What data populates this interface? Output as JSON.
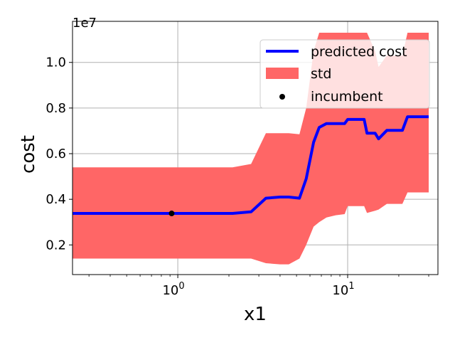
{
  "chart_data": {
    "type": "line",
    "title": "",
    "xlabel": "x1",
    "ylabel": "cost",
    "x_scale": "log",
    "y_offset_label": "1e7",
    "xlim": [
      0.24,
      34
    ],
    "ylim": [
      0.07,
      1.18
    ],
    "x_ticks": [
      {
        "value": 1,
        "label": "10",
        "exp": "0"
      },
      {
        "value": 10,
        "label": "10",
        "exp": "1"
      }
    ],
    "y_ticks": [
      {
        "value": 0.2,
        "label": "0.2"
      },
      {
        "value": 0.4,
        "label": "0.4"
      },
      {
        "value": 0.6,
        "label": "0.6"
      },
      {
        "value": 0.8,
        "label": "0.8"
      },
      {
        "value": 1.0,
        "label": "1.0"
      }
    ],
    "grid": true,
    "legend_position": "top-right",
    "colors": {
      "line": "#0000ff",
      "band": "#ff6666",
      "point": "#000000",
      "grid": "#b0b0b0"
    },
    "series": [
      {
        "name": "predicted cost",
        "x": [
          0.24,
          0.5,
          1.0,
          1.5,
          2.1,
          2.7,
          3.3,
          4.0,
          4.5,
          5.2,
          5.7,
          6.3,
          6.8,
          7.5,
          8.5,
          9.6,
          10.0,
          11.0,
          12.5,
          13.0,
          14.5,
          15.2,
          17.0,
          21.0,
          22.5,
          25.0,
          30.0
        ],
        "y": [
          0.338,
          0.338,
          0.338,
          0.338,
          0.338,
          0.345,
          0.405,
          0.41,
          0.41,
          0.405,
          0.49,
          0.65,
          0.715,
          0.732,
          0.732,
          0.732,
          0.75,
          0.75,
          0.75,
          0.69,
          0.69,
          0.665,
          0.702,
          0.702,
          0.762,
          0.762,
          0.762
        ]
      },
      {
        "name": "std",
        "x": [
          0.24,
          0.5,
          1.0,
          1.5,
          2.1,
          2.7,
          3.3,
          4.0,
          4.5,
          5.2,
          5.7,
          6.3,
          6.8,
          7.5,
          8.5,
          9.6,
          10.0,
          11.0,
          12.5,
          13.0,
          14.5,
          15.2,
          17.0,
          21.0,
          22.5,
          25.0,
          30.0
        ],
        "upper": [
          0.54,
          0.54,
          0.54,
          0.54,
          0.54,
          0.555,
          0.69,
          0.69,
          0.69,
          0.685,
          0.8,
          1.05,
          1.13,
          1.13,
          1.13,
          1.13,
          1.13,
          1.13,
          1.13,
          1.13,
          1.05,
          0.98,
          1.03,
          1.03,
          1.13,
          1.13,
          1.13
        ],
        "lower": [
          0.14,
          0.14,
          0.14,
          0.14,
          0.14,
          0.14,
          0.12,
          0.115,
          0.115,
          0.14,
          0.2,
          0.28,
          0.3,
          0.32,
          0.33,
          0.335,
          0.37,
          0.37,
          0.37,
          0.34,
          0.35,
          0.355,
          0.38,
          0.38,
          0.43,
          0.43,
          0.43
        ]
      },
      {
        "name": "incumbent",
        "points": [
          {
            "x": 0.92,
            "y": 0.338
          }
        ]
      }
    ]
  }
}
